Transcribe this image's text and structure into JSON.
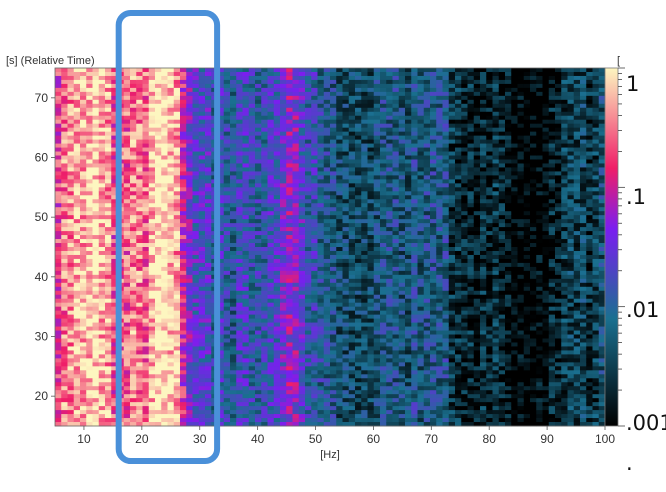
{
  "chart_data": {
    "type": "heatmap",
    "xlabel": "[Hz]",
    "ylabel": "[s] (Relative Time)",
    "x_ticks": [
      10,
      20,
      30,
      40,
      50,
      60,
      70,
      80,
      90,
      100
    ],
    "y_ticks": [
      20,
      30,
      40,
      50,
      60,
      70
    ],
    "xlim": [
      5,
      100
    ],
    "ylim": [
      15,
      75
    ],
    "colorbar": {
      "scale": "log",
      "range": [
        0.001,
        1
      ],
      "tick_labels": [
        "1",
        ".1",
        ".01",
        ".001"
      ],
      "colors": [
        "#000000",
        "#1a7090",
        "#7a1ef0",
        "#ef1e68",
        "#fdf6c0"
      ],
      "corner_label": "[",
      "footer_label": "."
    },
    "frequency_profile": {
      "frequency_hz": [
        5,
        7,
        10,
        13,
        15,
        17,
        18,
        20,
        22,
        25,
        27,
        28,
        30,
        32,
        35,
        40,
        44,
        46,
        48,
        50,
        55,
        60,
        65,
        70,
        72,
        75,
        80,
        84,
        88,
        92,
        95,
        100
      ],
      "level": [
        0.2,
        0.35,
        0.8,
        0.6,
        0.2,
        0.15,
        0.4,
        0.2,
        0.85,
        0.6,
        0.2,
        0.06,
        0.02,
        0.015,
        0.012,
        0.01,
        0.03,
        0.04,
        0.015,
        0.008,
        0.006,
        0.005,
        0.005,
        0.01,
        0.008,
        0.002,
        0.002,
        0.0012,
        0.001,
        0.0015,
        0.003,
        0.004
      ]
    },
    "annotation": {
      "type": "highlight-box",
      "x_range_hz": [
        16,
        33
      ],
      "color": "#4a90d9"
    }
  }
}
